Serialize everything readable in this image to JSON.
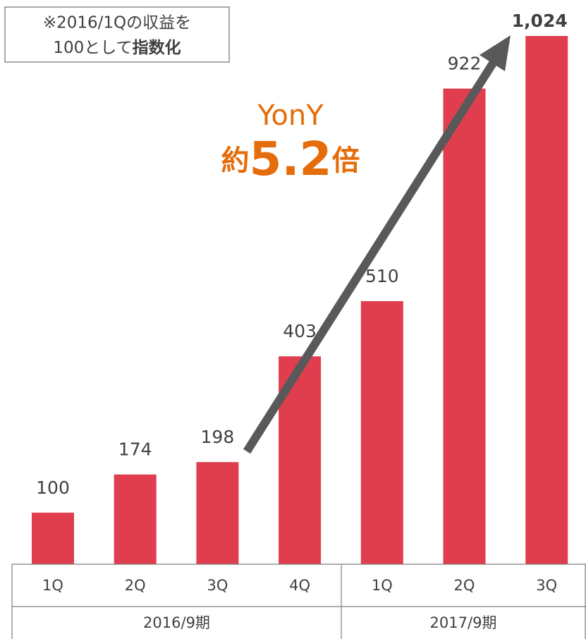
{
  "chart_data": {
    "type": "bar",
    "categories": [
      "1Q",
      "2Q",
      "3Q",
      "4Q",
      "1Q",
      "2Q",
      "3Q"
    ],
    "groups": [
      {
        "label": "2016/9期",
        "count": 4
      },
      {
        "label": "2017/9期",
        "count": 3
      }
    ],
    "values": [
      100,
      174,
      198,
      403,
      510,
      922,
      1024
    ],
    "value_labels": [
      "100",
      "174",
      "198",
      "403",
      "510",
      "922",
      "1,024"
    ],
    "color": "#e03e4e",
    "note": {
      "lines": [
        "※2016/1Qの収益を",
        "100として"
      ],
      "bold": "指数化"
    },
    "annotation": {
      "title": "YonY",
      "prefix": "約",
      "number": "5.2",
      "suffix": "倍",
      "color": "#e46c0a"
    }
  }
}
